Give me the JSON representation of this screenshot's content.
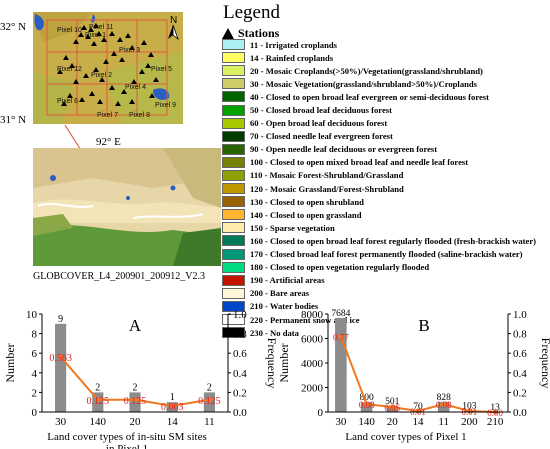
{
  "map": {
    "lat_labels": [
      "32° N",
      "31° N"
    ],
    "lon_label": "92° E",
    "north_label": "N",
    "pixel_labels": [
      "Pixel 1",
      "Pixel 2",
      "Pixel 3",
      "Pixel 4",
      "Pixel 5",
      "Pixel 6",
      "Pixel 7",
      "Pixel 8",
      "Pixel 9",
      "Pixel 10",
      "Pixel 11",
      "Pixel 12"
    ],
    "caption": "GLOBCOVER_L4_200901_200912_V2.3"
  },
  "legend": {
    "title": "Legend",
    "stations_label": "Stations",
    "items": [
      {
        "label": "11 - Irrigated croplands",
        "color": "#aaf0f0"
      },
      {
        "label": "14 - Rainfed croplands",
        "color": "#ffff64"
      },
      {
        "label": "20 - Mosaic Croplands(>50%)/Vegetation(grassland/shrubland)",
        "color": "#dcf064"
      },
      {
        "label": "30 - Mosaic Vegetation(grassland/shrubland>50%)/Croplands",
        "color": "#cdcd66"
      },
      {
        "label": "40 - Closed to open broad leaf evergreen or semi-deciduous forest",
        "color": "#006400"
      },
      {
        "label": "50 - Closed broad leaf deciduous forest",
        "color": "#00a000"
      },
      {
        "label": "60 - Open broad leaf deciduous forest",
        "color": "#aac800"
      },
      {
        "label": "70 - Closed needle leaf evergreen forest",
        "color": "#003c00"
      },
      {
        "label": "90 - Open needle leaf deciduous or evergreen forest",
        "color": "#286400"
      },
      {
        "label": "100 - Closed to open mixed broad leaf and needle leaf forest",
        "color": "#788200"
      },
      {
        "label": "110 - Mosaic Forest-Shrubland/Grassland",
        "color": "#8ca000"
      },
      {
        "label": "120 - Mosaic Grassland/Forest-Shrubland",
        "color": "#be9600"
      },
      {
        "label": "130 - Closed to open shrubland",
        "color": "#966400"
      },
      {
        "label": "140 - Closed to open grassland",
        "color": "#ffb432"
      },
      {
        "label": "150 - Sparse vegetation",
        "color": "#ffebaf"
      },
      {
        "label": "160 - Closed to open broad leaf forest regularly flooded (fresh-brackish water)",
        "color": "#00785a"
      },
      {
        "label": "170 - Closed broad leaf forest permanently flooded (saline-brackish water)",
        "color": "#009678"
      },
      {
        "label": "180 - Closed to open vegetation regularly flooded",
        "color": "#00dc82"
      },
      {
        "label": "190 - Artificial areas",
        "color": "#c31400"
      },
      {
        "label": "200 - Bare areas",
        "color": "#fff5d7"
      },
      {
        "label": "210 - Water bodies",
        "color": "#0046c8"
      },
      {
        "label": "220 - Permanent snow and ice",
        "color": "#ffffff"
      },
      {
        "label": "230 - No data",
        "color": "#000000"
      }
    ]
  },
  "chart_data": [
    {
      "type": "bar",
      "panel_label": "A",
      "xlabel": "Land cover types of in-situ SM sites\nin Pixel 1",
      "ylabel": "Number",
      "y2label": "Frequency",
      "categories": [
        "30",
        "140",
        "20",
        "14",
        "11"
      ],
      "values": [
        9,
        2,
        2,
        1,
        2
      ],
      "frequency": [
        0.563,
        0.125,
        0.125,
        0.063,
        0.125
      ],
      "ylim": [
        0,
        10
      ],
      "y2lim": [
        0,
        1
      ],
      "yticks": [
        "0",
        "2",
        "4",
        "6",
        "8",
        "10"
      ],
      "y2ticks": [
        "0.0",
        "0.2",
        "0.4",
        "0.6",
        "0.8",
        "1.0"
      ],
      "bar_color": "#8c8c8c",
      "line_color": "#f07820",
      "freq_label_color": "#e02020"
    },
    {
      "type": "bar",
      "panel_label": "B",
      "xlabel": "Land cover types of Pixel 1",
      "ylabel": "Number",
      "y2label": "Frequency",
      "categories": [
        "30",
        "140",
        "20",
        "14",
        "11",
        "200",
        "210"
      ],
      "values": [
        7684,
        800,
        501,
        70,
        828,
        103,
        13
      ],
      "frequency": [
        0.77,
        0.08,
        0.05,
        0.01,
        0.08,
        0.01,
        0.0
      ],
      "frequency_labels": [
        "0.77",
        "0.08",
        "0.05",
        "0.01",
        "0.08",
        "0.01",
        "0.00"
      ],
      "ylim": [
        0,
        8000
      ],
      "y2lim": [
        0,
        1
      ],
      "yticks": [
        "0",
        "2000",
        "4000",
        "6000",
        "8000"
      ],
      "y2ticks": [
        "0.0",
        "0.2",
        "0.4",
        "0.6",
        "0.8",
        "1.0"
      ],
      "bar_color": "#8c8c8c",
      "line_color": "#f07820",
      "freq_label_color": "#e02020"
    }
  ]
}
